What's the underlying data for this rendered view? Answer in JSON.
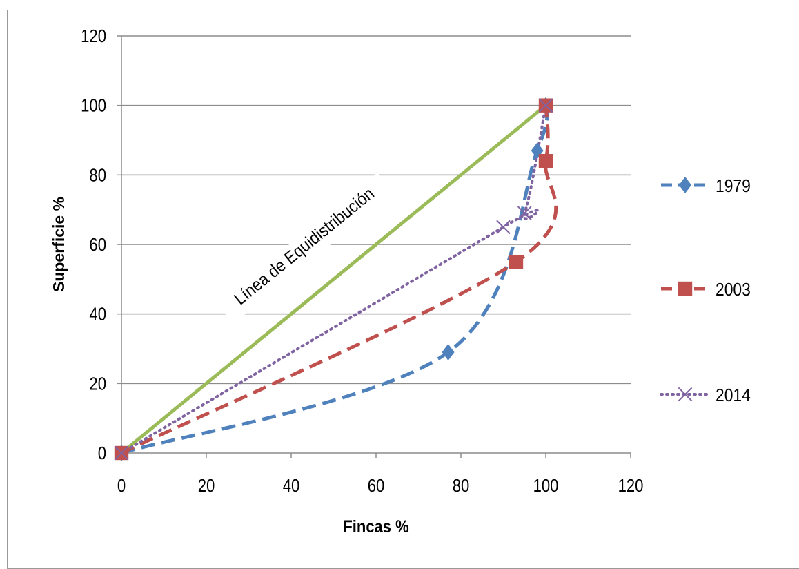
{
  "chart_data": {
    "type": "line",
    "title": "",
    "xlabel": "Fincas %",
    "ylabel": "Superficie %",
    "xlim": [
      0,
      120
    ],
    "ylim": [
      0,
      120
    ],
    "xticks": [
      0,
      20,
      40,
      60,
      80,
      100,
      120
    ],
    "yticks": [
      0,
      20,
      40,
      60,
      80,
      100,
      120
    ],
    "grid": "horizontal",
    "legend_position": "right",
    "annotation": "Línea de Equidistribución",
    "equidistribution": {
      "x": [
        0,
        100
      ],
      "y": [
        0,
        100
      ],
      "color": "#9BBB59"
    },
    "series": [
      {
        "name": "1979",
        "color": "#4F81BD",
        "dash": "dashed",
        "marker": "diamond",
        "x": [
          0,
          77,
          98,
          100
        ],
        "y": [
          0,
          29,
          87,
          100
        ]
      },
      {
        "name": "2003",
        "color": "#C0504D",
        "dash": "dashed",
        "marker": "square",
        "x": [
          0,
          93,
          100,
          100
        ],
        "y": [
          0,
          55,
          84,
          100
        ]
      },
      {
        "name": "2014",
        "color": "#8064A2",
        "dash": "dotted",
        "marker": "x",
        "x": [
          0,
          90,
          95,
          100
        ],
        "y": [
          0,
          65,
          69,
          100
        ]
      }
    ]
  }
}
